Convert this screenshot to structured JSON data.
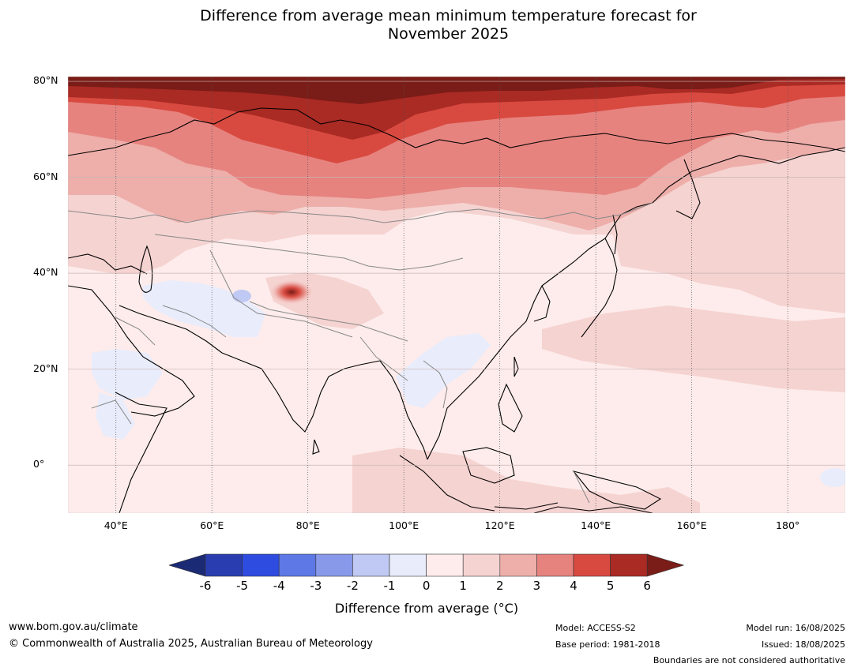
{
  "title": [
    "Difference from average mean minimum temperature forecast for",
    "November 2025"
  ],
  "map": {
    "latitude_labels": [
      {
        "label": "80°N",
        "lat": 80
      },
      {
        "label": "60°N",
        "lat": 60
      },
      {
        "label": "40°N",
        "lat": 40
      },
      {
        "label": "20°N",
        "lat": 20
      },
      {
        "label": "0°",
        "lat": 0
      }
    ],
    "longitude_labels": [
      {
        "label": "40°E",
        "lon": 40
      },
      {
        "label": "60°E",
        "lon": 60
      },
      {
        "label": "80°E",
        "lon": 80
      },
      {
        "label": "100°E",
        "lon": 100
      },
      {
        "label": "120°E",
        "lon": 120
      },
      {
        "label": "140°E",
        "lon": 140
      },
      {
        "label": "160°E",
        "lon": 160
      },
      {
        "label": "180°",
        "lon": 180
      }
    ],
    "extent": {
      "lon_min": 30,
      "lon_max": 192,
      "lat_min": -10,
      "lat_max": 81
    }
  },
  "colorbar": {
    "ticks": [
      "-6",
      "-5",
      "-4",
      "-3",
      "-2",
      "-1",
      "0",
      "1",
      "2",
      "3",
      "4",
      "5",
      "6"
    ],
    "colors": [
      "#1b2a74",
      "#2a3db0",
      "#2f4ce0",
      "#5e78e6",
      "#8899ea",
      "#c0c9f3",
      "#e9ecfb",
      "#fdeceb",
      "#f5d3d1",
      "#eeaeaa",
      "#e6837f",
      "#d84a40",
      "#aa2a24",
      "#7a1c17"
    ],
    "label": "Difference from average (°C)"
  },
  "footer": {
    "url": "www.bom.gov.au/climate",
    "copyright": "© Commonwealth of Australia 2025, Australian Bureau of Meteorology",
    "model": "Model: ACCESS-S2",
    "base_period": "Base period: 1981-2018",
    "model_run": "Model run: 16/08/2025",
    "issued": "Issued: 18/08/2025",
    "disclaimer": "Boundaries are not considered authoritative"
  }
}
